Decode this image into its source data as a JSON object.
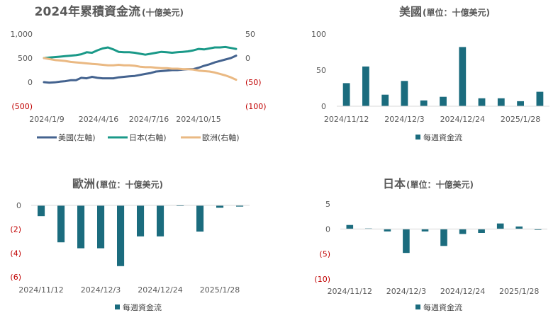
{
  "chart_data": [
    {
      "type": "line",
      "title": "2024年累積資金流",
      "subtitle": "(十億美元)",
      "x_tick_labels": [
        "2024/1/9",
        "2024/4/16",
        "2024/7/16",
        "2024/10/15"
      ],
      "y_left_tick_labels": [
        "1,000",
        "500",
        "0",
        "(500)"
      ],
      "y_right_tick_labels": [
        "50",
        "0",
        "(50)",
        "(100)"
      ],
      "y_left_range": [
        -500,
        1000
      ],
      "y_right_range": [
        -100,
        50
      ],
      "series": [
        {
          "name": "美國(左軸)",
          "axis": "left",
          "color": "#44638f",
          "values": [
            0,
            -10,
            -5,
            10,
            20,
            40,
            40,
            90,
            80,
            110,
            90,
            80,
            80,
            80,
            100,
            110,
            120,
            130,
            150,
            170,
            190,
            220,
            230,
            240,
            250,
            250,
            260,
            270,
            270,
            300,
            340,
            370,
            410,
            440,
            470,
            500,
            550
          ]
        },
        {
          "name": "日本(右軸)",
          "axis": "right",
          "color": "#1a9988",
          "values": [
            0,
            1,
            2,
            3,
            4,
            5,
            6,
            8,
            12,
            11,
            16,
            20,
            22,
            18,
            13,
            12,
            12,
            11,
            9,
            7,
            9,
            11,
            13,
            12,
            11,
            12,
            13,
            14,
            16,
            19,
            18,
            20,
            22,
            22,
            23,
            21,
            19
          ]
        },
        {
          "name": "歐洲(右軸)",
          "axis": "right",
          "color": "#eab983",
          "values": [
            0,
            -2,
            -4,
            -5,
            -6,
            -8,
            -9,
            -10,
            -11,
            -12,
            -13,
            -14,
            -15,
            -15,
            -14,
            -15,
            -15,
            -16,
            -18,
            -19,
            -19,
            -20,
            -21,
            -21,
            -22,
            -22,
            -23,
            -23,
            -24,
            -26,
            -27,
            -28,
            -30,
            -33,
            -36,
            -40,
            -45
          ]
        }
      ]
    },
    {
      "type": "bar",
      "title": "美國",
      "subtitle": "(單位：十億美元)",
      "x_tick_labels": [
        "2024/11/12",
        "2024/12/3",
        "2024/12/24",
        "2025/1/28"
      ],
      "y_tick_labels": [
        "100",
        "50",
        "0"
      ],
      "ylim": [
        0,
        100
      ],
      "legend": "每週資金流",
      "color": "#1b6c7e",
      "values": [
        32,
        55,
        16,
        35,
        8,
        13,
        82,
        11,
        11,
        7,
        20
      ]
    },
    {
      "type": "bar",
      "title": "歐洲",
      "subtitle": "(單位：十億美元)",
      "x_tick_labels": [
        "2024/11/12",
        "2024/12/3",
        "2024/12/24",
        "2025/1/28"
      ],
      "y_tick_labels": [
        "0",
        "(2)",
        "(4)",
        "(6)"
      ],
      "ylim": [
        -6,
        0
      ],
      "legend": "每週資金流",
      "color": "#1b6c7e",
      "values": [
        -0.9,
        -3.1,
        -3.6,
        -3.6,
        -5.1,
        -2.6,
        -2.6,
        -0.05,
        -2.2,
        -0.2,
        -0.1
      ]
    },
    {
      "type": "bar",
      "title": "日本",
      "subtitle": "(單位：十億美元)",
      "x_tick_labels": [
        "2024/11/12",
        "2024/12/3",
        "2024/12/24",
        "2025/1/28"
      ],
      "y_tick_labels": [
        "5",
        "0",
        "(5)",
        "(10)"
      ],
      "ylim": [
        -10,
        5
      ],
      "legend": "每週資金流",
      "color": "#1b6c7e",
      "values": [
        0.8,
        0.1,
        -0.5,
        -4.8,
        -0.5,
        -3.4,
        -1.0,
        -0.8,
        1.1,
        0.5,
        -0.2
      ]
    }
  ]
}
